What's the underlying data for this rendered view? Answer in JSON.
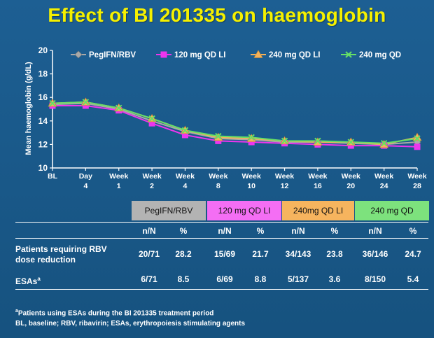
{
  "title": "Effect of BI 201335 on haemoglobin",
  "chart_data": {
    "type": "line",
    "ylabel": "Mean haemoglobin (g/dL)",
    "xlabel": "",
    "ylim": [
      10,
      20
    ],
    "yticks": [
      10,
      12,
      14,
      16,
      18,
      20
    ],
    "categories": [
      "BL",
      "Day 4",
      "Week 1",
      "Week 2",
      "Week 4",
      "Week 8",
      "Week 10",
      "Week 12",
      "Week 16",
      "Week 20",
      "Week 24",
      "Week 28"
    ],
    "category_lines": [
      [
        "BL",
        ""
      ],
      [
        "Day",
        "4"
      ],
      [
        "Week",
        "1"
      ],
      [
        "Week",
        "2"
      ],
      [
        "Week",
        "4"
      ],
      [
        "Week",
        "8"
      ],
      [
        "Week",
        "10"
      ],
      [
        "Week",
        "12"
      ],
      [
        "Week",
        "16"
      ],
      [
        "Week",
        "20"
      ],
      [
        "Week",
        "24"
      ],
      [
        "Week",
        "28"
      ]
    ],
    "legend_position": "top",
    "series": [
      {
        "name": "PegIFN/RBV",
        "color": "#a9a9a9",
        "marker": "diamond",
        "values": [
          15.4,
          15.5,
          15.0,
          14.0,
          13.1,
          12.5,
          12.4,
          12.2,
          12.2,
          12.1,
          12.0,
          12.2
        ]
      },
      {
        "name": "120 mg QD LI",
        "color": "#ee35ee",
        "marker": "square",
        "values": [
          15.3,
          15.3,
          14.9,
          13.8,
          12.8,
          12.3,
          12.2,
          12.1,
          12.0,
          11.9,
          11.9,
          11.8
        ]
      },
      {
        "name": "240 mg QD LI",
        "color": "#f4b25a",
        "marker": "triangle",
        "values": [
          15.5,
          15.6,
          15.1,
          14.2,
          13.2,
          12.6,
          12.5,
          12.3,
          12.2,
          12.2,
          12.0,
          12.6
        ]
      },
      {
        "name": "240 mg QD",
        "color": "#66e066",
        "marker": "x",
        "values": [
          15.5,
          15.6,
          15.1,
          14.2,
          13.2,
          12.7,
          12.6,
          12.3,
          12.3,
          12.2,
          12.1,
          12.5
        ]
      }
    ]
  },
  "table": {
    "groups": [
      {
        "label": "PegIFN/RBV",
        "color": "#b3b3b3"
      },
      {
        "label": "120 mg QD LI",
        "color": "#f46ef4"
      },
      {
        "label": "240mg QD LI",
        "color": "#f6b45e"
      },
      {
        "label": "240 mg QD",
        "color": "#7de27d"
      }
    ],
    "subheaders": [
      "n/N",
      "%",
      "n/N",
      "%",
      "n/N",
      "%",
      "n/N",
      "%"
    ],
    "rows": [
      {
        "label_line1": "Patients requiring RBV",
        "label_line2": "dose reduction",
        "values": [
          "20/71",
          "28.2",
          "15/69",
          "21.7",
          "34/143",
          "23.8",
          "36/146",
          "24.7"
        ]
      },
      {
        "label_line1": "ESAs",
        "label_sup": "a",
        "values": [
          "6/71",
          "8.5",
          "6/69",
          "8.8",
          "5/137",
          "3.6",
          "8/150",
          "5.4"
        ]
      }
    ]
  },
  "footnotes": {
    "line1_sup": "a",
    "line1": "Patients using ESAs during the BI 201335 treatment period",
    "line2": "BL, baseline; RBV, ribavirin; ESAs, erythropoiesis stimulating agents"
  }
}
